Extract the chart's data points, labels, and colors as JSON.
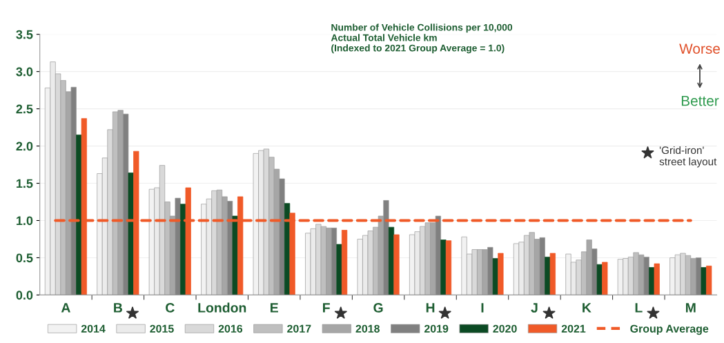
{
  "chart_data": {
    "type": "bar",
    "title": "Number of Vehicle Collisions per 10,000\nActual Total Vehicle km\n(Indexed to 2021 Group Average = 1.0)",
    "categories": [
      "A",
      "B",
      "C",
      "London",
      "E",
      "F",
      "G",
      "H",
      "I",
      "J",
      "K",
      "L",
      "M"
    ],
    "series": [
      {
        "name": "2014",
        "color": "#f2f2f2",
        "values": [
          2.78,
          1.63,
          1.42,
          1.22,
          1.9,
          0.83,
          0.75,
          0.81,
          0.78,
          0.69,
          0.55,
          0.48,
          0.5
        ]
      },
      {
        "name": "2015",
        "color": "#ebebeb",
        "values": [
          3.13,
          1.84,
          1.44,
          1.29,
          1.94,
          0.89,
          0.8,
          0.85,
          0.55,
          0.71,
          0.44,
          0.49,
          0.54
        ]
      },
      {
        "name": "2016",
        "color": "#d9d9d9",
        "values": [
          2.97,
          2.22,
          1.74,
          1.4,
          1.96,
          0.95,
          0.86,
          0.92,
          0.61,
          0.8,
          0.47,
          0.51,
          0.56
        ]
      },
      {
        "name": "2017",
        "color": "#bfbfbf",
        "values": [
          2.88,
          2.46,
          1.25,
          1.41,
          1.85,
          0.92,
          0.91,
          0.97,
          0.61,
          0.84,
          0.58,
          0.57,
          0.53
        ]
      },
      {
        "name": "2018",
        "color": "#a6a6a6",
        "values": [
          2.73,
          2.48,
          1.06,
          1.32,
          1.69,
          0.9,
          1.06,
          0.97,
          0.61,
          0.75,
          0.74,
          0.54,
          0.49
        ]
      },
      {
        "name": "2019",
        "color": "#808080",
        "values": [
          2.79,
          2.43,
          1.3,
          1.26,
          1.56,
          0.9,
          1.27,
          1.06,
          0.64,
          0.77,
          0.62,
          0.51,
          0.5
        ]
      },
      {
        "name": "2020",
        "color": "#0b4a23",
        "values": [
          2.15,
          1.64,
          1.22,
          1.06,
          1.23,
          0.68,
          0.91,
          0.74,
          0.49,
          0.51,
          0.41,
          0.37,
          0.37
        ]
      },
      {
        "name": "2021",
        "color": "#f05a28",
        "values": [
          2.37,
          1.93,
          1.44,
          1.32,
          1.1,
          0.87,
          0.81,
          0.73,
          0.56,
          0.56,
          0.44,
          0.42,
          0.39
        ]
      }
    ],
    "ref_lines": [
      {
        "axis": "y",
        "value": 1.0,
        "label": "Group Average",
        "color": "#f05a28",
        "line_style": "dashed"
      }
    ],
    "ylim": [
      0,
      3.5
    ],
    "yticks": [
      {
        "value": 0,
        "label": "0.0"
      },
      {
        "value": 0.5,
        "label": "0.5"
      },
      {
        "value": 1.0,
        "label": "1.0"
      },
      {
        "value": 1.5,
        "label": "1.5"
      },
      {
        "value": 2.0,
        "label": "2.0"
      },
      {
        "value": 2.5,
        "label": "2.5"
      },
      {
        "value": 3.0,
        "label": "3.0"
      },
      {
        "value": 3.5,
        "label": "3.5"
      }
    ],
    "grid": "y",
    "legend": "bottom",
    "annotations": [
      "Worse",
      "Better",
      "'Grid-iron'\nstreet layout"
    ]
  }
}
